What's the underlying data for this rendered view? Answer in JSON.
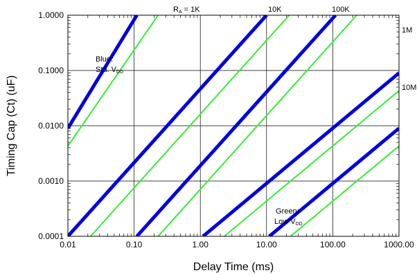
{
  "chart_data": {
    "type": "line",
    "xlabel": "Delay Time (ms)",
    "ylabel": "Timing Cap (Ct) (uF)",
    "x_scale": "log",
    "y_scale": "log",
    "xlim": [
      0.01,
      1000
    ],
    "ylim": [
      0.0001,
      1
    ],
    "grid": true,
    "x_tick_labels": [
      "0.01",
      "0.10",
      "1.00",
      "10.00",
      "100.00",
      "1000.00"
    ],
    "y_tick_labels": [
      "0.0001",
      "0.0010",
      "0.0100",
      "0.1000",
      "1.0000"
    ],
    "colors": {
      "blue": "#0000dd",
      "green": "#33ee33"
    },
    "series": [
      {
        "name": "RA = 1K",
        "group": "blue",
        "points": [
          [
            0.01,
            0.009
          ],
          [
            0.11,
            1.0
          ]
        ]
      },
      {
        "name": "RA = 1K",
        "group": "green",
        "points": [
          [
            0.01,
            0.0043
          ],
          [
            0.23,
            1.0
          ]
        ]
      },
      {
        "name": "RA = 10K",
        "group": "blue",
        "points": [
          [
            0.01,
            0.0001
          ],
          [
            10,
            1.0
          ]
        ]
      },
      {
        "name": "RA = 10K",
        "group": "green",
        "points": [
          [
            0.022,
            0.0001
          ],
          [
            22,
            1.0
          ]
        ]
      },
      {
        "name": "RA = 100K",
        "group": "blue",
        "points": [
          [
            0.11,
            0.0001
          ],
          [
            110,
            1.0
          ]
        ]
      },
      {
        "name": "RA = 100K",
        "group": "green",
        "points": [
          [
            0.23,
            0.0001
          ],
          [
            230,
            1.0
          ]
        ]
      },
      {
        "name": "1M",
        "group": "blue",
        "points": [
          [
            1.1,
            0.0001
          ],
          [
            1000,
            0.09
          ]
        ]
      },
      {
        "name": "1M",
        "group": "green",
        "points": [
          [
            2.3,
            0.0001
          ],
          [
            1000,
            0.043
          ]
        ]
      },
      {
        "name": "10M",
        "group": "blue",
        "points": [
          [
            11,
            0.0001
          ],
          [
            1000,
            0.009
          ]
        ]
      },
      {
        "name": "10M",
        "group": "green",
        "points": [
          [
            23,
            0.0001
          ],
          [
            1000,
            0.0043
          ]
        ]
      }
    ],
    "annotations": {
      "ra_prefix": "R",
      "ra_sub": "A",
      "ra_suffix": " = 1K",
      "label_10k": "10K",
      "label_100k": "100K",
      "label_1m": "1M",
      "label_10m": "10M",
      "blue_line1": "Blue:",
      "blue_line2_prefix": "Std. V",
      "blue_line2_sub": "DD",
      "green_line1": "Green:",
      "green_line2_prefix": "Low V",
      "green_line2_sub": "DD"
    }
  }
}
